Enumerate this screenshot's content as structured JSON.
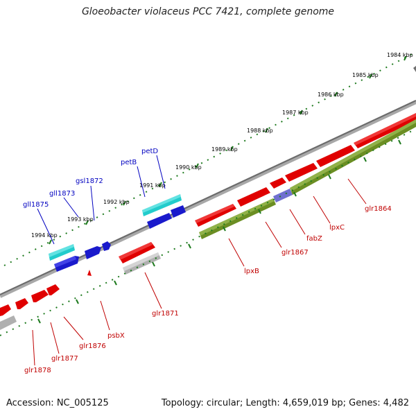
{
  "title": "Gloeobacter violaceus PCC 7421, complete genome",
  "footer": {
    "accession": "Accession: NC_005125",
    "topology": "Topology: circular; Length: 4,659,019 bp; Genes: 4,482"
  },
  "colors": {
    "backbone": "#808080",
    "tick": "#1e7a1e",
    "red_gene": "#e00000",
    "blue_gene": "#1a1acc",
    "cyan_gene": "#22cccc",
    "olive_gene": "#6b8e23",
    "grey_gene": "#b0b0b0",
    "violet_gene": "#7070d0",
    "blue_label": "#0000c0",
    "red_label": "#c00000"
  },
  "scale_labels": [
    "1984 kbp",
    "1985 kbp",
    "1986 kbp",
    "1987 kbp",
    "1988 kbp",
    "1989 kbp",
    "1990 kbp",
    "1991 kbp",
    "1992 kbp",
    "1993 kbp",
    "1994 kbp"
  ],
  "outer_labels": [
    "gll1875",
    "gll1873",
    "gsl1872",
    "petB",
    "petD"
  ],
  "inner_labels": [
    "glr1864",
    "lpxC",
    "fabZ",
    "glr1867",
    "lpxB",
    "glr1871",
    "psbX",
    "glr1876",
    "glr1877",
    "glr1878"
  ]
}
